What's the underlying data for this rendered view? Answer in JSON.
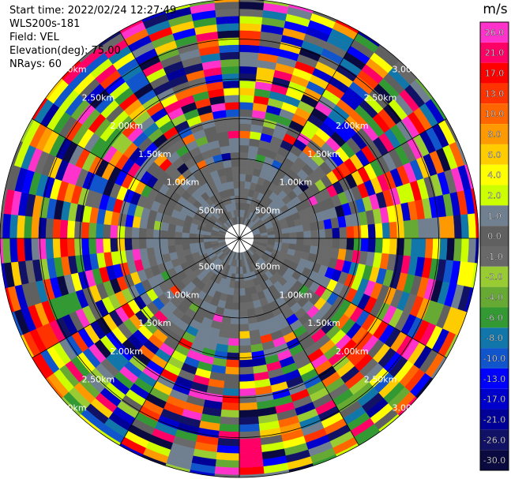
{
  "info": {
    "start_time": "Start time: 2022/02/24 12:27:49",
    "instrument": "WLS200s-181",
    "field": "Field: VEL",
    "elevation": "Elevation(deg): 75.00",
    "nrays": "NRays: 60"
  },
  "colorbar": {
    "unit": "m/s",
    "ticks": [
      "26.0",
      "21.0",
      "17.0",
      "13.0",
      "10.0",
      "8.0",
      "6.0",
      "4.0",
      "2.0",
      "1.0",
      "0.0",
      "-1.0",
      "-2.0",
      "-4.0",
      "-6.0",
      "-8.0",
      "-10.0",
      "-13.0",
      "-17.0",
      "-21.0",
      "-26.0",
      "-30.0"
    ],
    "colors": [
      "#ff33cc",
      "#ff0066",
      "#ff0000",
      "#ff3300",
      "#ff6600",
      "#ff9900",
      "#ffcc00",
      "#ffff00",
      "#ccff00",
      "#708090",
      "#606060",
      "#696969",
      "#99cc33",
      "#66aa33",
      "#339933",
      "#1177aa",
      "#1155cc",
      "#0000ff",
      "#0000cc",
      "#000099",
      "#111166",
      "#0a0a40"
    ]
  },
  "chart_data": {
    "type": "heatmap",
    "projection": "polar PPI",
    "field": "VEL",
    "units": "m/s",
    "n_rays": 60,
    "range_rings_km": [
      0.5,
      1.0,
      1.5,
      2.0,
      2.5,
      3.0
    ],
    "ring_labels": [
      "500m",
      "1.00km",
      "1.50km",
      "2.00km",
      "2.50km",
      "3.00km"
    ],
    "value_range": [
      -30,
      26
    ],
    "spokes": 12
  }
}
